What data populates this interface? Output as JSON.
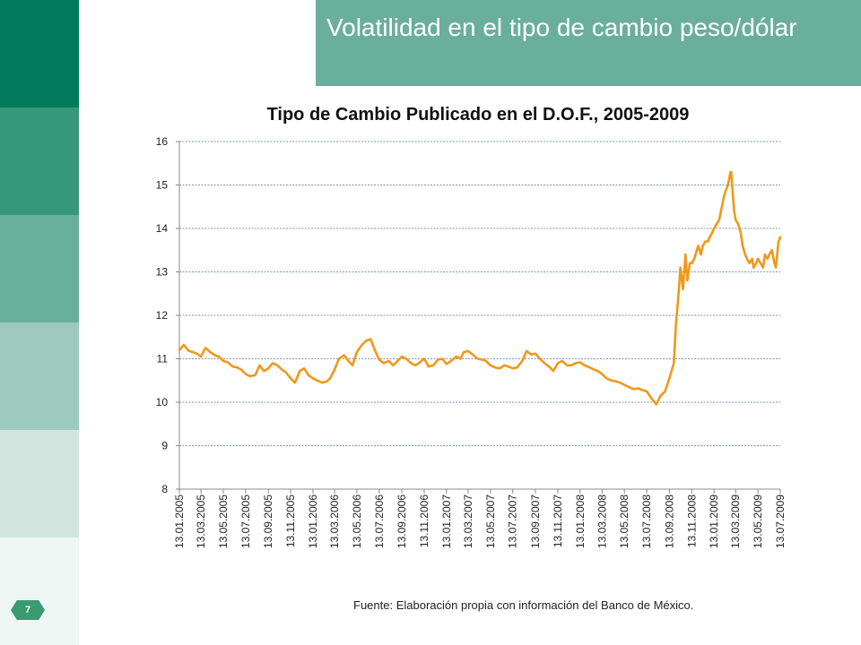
{
  "slide": {
    "title": "Volatilidad en el tipo de cambio peso/dólar",
    "page_number": "7",
    "source": "Fuente: Elaboración propia con información del Banco de México."
  },
  "colors": {
    "band_1": "#007a5a",
    "band_2": "#37977a",
    "band_3": "#6aae9c",
    "band_4": "#9dcabd",
    "band_5": "#cfe5de",
    "band_6": "#eef6f3",
    "title_bg": "#6aae9c",
    "line": "#f0981a",
    "grid": "#4a73a8"
  },
  "chart_data": {
    "type": "line",
    "title": "Tipo de Cambio Publicado en el D.O.F., 2005-2009",
    "xlabel": "",
    "ylabel": "",
    "ylim": [
      8,
      16
    ],
    "yticks": [
      8,
      9,
      10,
      11,
      12,
      13,
      14,
      15,
      16
    ],
    "grid": true,
    "legend": "none",
    "categories": [
      "13.01.2005",
      "13.03.2005",
      "13.05.2005",
      "13.07.2005",
      "13.09.2005",
      "13.11.2005",
      "13.01.2006",
      "13.03.2006",
      "13.05.2006",
      "13.07.2006",
      "13.09.2006",
      "13.11.2006",
      "13.01.2007",
      "13.03.2007",
      "13.05.2007",
      "13.07.2007",
      "13.09.2007",
      "13.11.2007",
      "13.01.2008",
      "13.03.2008",
      "13.05.2008",
      "13.07.2008",
      "13.09.2008",
      "13.11.2008",
      "13.01.2009",
      "13.03.2009",
      "13.05.2009",
      "13.07.2009"
    ],
    "series": [
      {
        "x": [
          "2005-01-13",
          "2005-01-25",
          "2005-02-08",
          "2005-02-20",
          "2005-03-01",
          "2005-03-13",
          "2005-03-25",
          "2005-04-08",
          "2005-04-20",
          "2005-05-01",
          "2005-05-13",
          "2005-05-25",
          "2005-06-08",
          "2005-06-20",
          "2005-07-01",
          "2005-07-13",
          "2005-07-25",
          "2005-08-08",
          "2005-08-20",
          "2005-09-01",
          "2005-09-13",
          "2005-09-25",
          "2005-10-08",
          "2005-10-20",
          "2005-11-01",
          "2005-11-13",
          "2005-11-25",
          "2005-12-08",
          "2005-12-20",
          "2006-01-01",
          "2006-01-13",
          "2006-01-25",
          "2006-02-08",
          "2006-02-20",
          "2006-03-01",
          "2006-03-13",
          "2006-03-25",
          "2006-04-08",
          "2006-04-20",
          "2006-05-01",
          "2006-05-13",
          "2006-05-25",
          "2006-06-08",
          "2006-06-20",
          "2006-07-01",
          "2006-07-13",
          "2006-07-25",
          "2006-08-08",
          "2006-08-20",
          "2006-09-01",
          "2006-09-13",
          "2006-09-25",
          "2006-10-08",
          "2006-10-20",
          "2006-11-01",
          "2006-11-13",
          "2006-11-25",
          "2006-12-08",
          "2006-12-20",
          "2007-01-01",
          "2007-01-13",
          "2007-01-25",
          "2007-02-08",
          "2007-02-20",
          "2007-03-01",
          "2007-03-13",
          "2007-03-25",
          "2007-04-08",
          "2007-04-20",
          "2007-05-01",
          "2007-05-13",
          "2007-05-25",
          "2007-06-08",
          "2007-06-20",
          "2007-07-01",
          "2007-07-13",
          "2007-07-25",
          "2007-08-08",
          "2007-08-20",
          "2007-09-01",
          "2007-09-13",
          "2007-09-25",
          "2007-10-08",
          "2007-10-20",
          "2007-11-01",
          "2007-11-13",
          "2007-11-25",
          "2007-12-08",
          "2007-12-20",
          "2008-01-01",
          "2008-01-13",
          "2008-01-25",
          "2008-02-08",
          "2008-02-20",
          "2008-03-01",
          "2008-03-13",
          "2008-03-25",
          "2008-04-08",
          "2008-04-20",
          "2008-05-01",
          "2008-05-13",
          "2008-05-25",
          "2008-06-08",
          "2008-06-20",
          "2008-07-01",
          "2008-07-13",
          "2008-07-25",
          "2008-08-08",
          "2008-08-20",
          "2008-09-01",
          "2008-09-13",
          "2008-09-25",
          "2008-10-01",
          "2008-10-08",
          "2008-10-13",
          "2008-10-20",
          "2008-10-27",
          "2008-11-01",
          "2008-11-08",
          "2008-11-13",
          "2008-11-20",
          "2008-11-27",
          "2008-12-01",
          "2008-12-08",
          "2008-12-13",
          "2008-12-20",
          "2008-12-27",
          "2009-01-01",
          "2009-01-08",
          "2009-01-13",
          "2009-01-20",
          "2009-01-27",
          "2009-02-01",
          "2009-02-08",
          "2009-02-13",
          "2009-02-20",
          "2009-02-27",
          "2009-03-01",
          "2009-03-05",
          "2009-03-09",
          "2009-03-13",
          "2009-03-20",
          "2009-03-27",
          "2009-04-01",
          "2009-04-08",
          "2009-04-13",
          "2009-04-20",
          "2009-04-27",
          "2009-05-01",
          "2009-05-08",
          "2009-05-13",
          "2009-05-20",
          "2009-05-27",
          "2009-06-01",
          "2009-06-08",
          "2009-06-13",
          "2009-06-20",
          "2009-06-27",
          "2009-07-01",
          "2009-07-08",
          "2009-07-13"
        ],
        "values": [
          11.2,
          11.32,
          11.18,
          11.15,
          11.12,
          11.05,
          11.25,
          11.15,
          11.08,
          11.05,
          10.95,
          10.92,
          10.82,
          10.8,
          10.75,
          10.65,
          10.6,
          10.62,
          10.85,
          10.72,
          10.78,
          10.9,
          10.85,
          10.75,
          10.68,
          10.55,
          10.45,
          10.72,
          10.78,
          10.62,
          10.55,
          10.5,
          10.45,
          10.48,
          10.55,
          10.75,
          11.0,
          11.08,
          10.95,
          10.85,
          11.15,
          11.3,
          11.42,
          11.45,
          11.2,
          10.98,
          10.9,
          10.95,
          10.85,
          10.95,
          11.05,
          11.0,
          10.9,
          10.85,
          10.92,
          11.0,
          10.82,
          10.85,
          10.98,
          11.0,
          10.88,
          10.95,
          11.05,
          11.0,
          11.15,
          11.18,
          11.1,
          11.0,
          10.98,
          10.95,
          10.85,
          10.8,
          10.78,
          10.85,
          10.82,
          10.78,
          10.8,
          10.95,
          11.18,
          11.1,
          11.12,
          11.0,
          10.9,
          10.82,
          10.72,
          10.9,
          10.95,
          10.85,
          10.85,
          10.9,
          10.92,
          10.85,
          10.8,
          10.75,
          10.72,
          10.65,
          10.55,
          10.5,
          10.48,
          10.45,
          10.4,
          10.35,
          10.3,
          10.32,
          10.28,
          10.25,
          10.1,
          9.95,
          10.15,
          10.25,
          10.55,
          10.9,
          11.8,
          12.5,
          13.1,
          12.6,
          13.4,
          12.8,
          13.2,
          13.2,
          13.3,
          13.5,
          13.6,
          13.4,
          13.6,
          13.7,
          13.7,
          13.8,
          13.9,
          14.0,
          14.1,
          14.2,
          14.4,
          14.7,
          14.85,
          15.0,
          15.3,
          15.3,
          14.8,
          14.4,
          14.2,
          14.1,
          13.9,
          13.6,
          13.4,
          13.3,
          13.2,
          13.3,
          13.1,
          13.2,
          13.3,
          13.2,
          13.1,
          13.4,
          13.3,
          13.4,
          13.5,
          13.2,
          13.1,
          13.7,
          13.8
        ]
      }
    ]
  }
}
